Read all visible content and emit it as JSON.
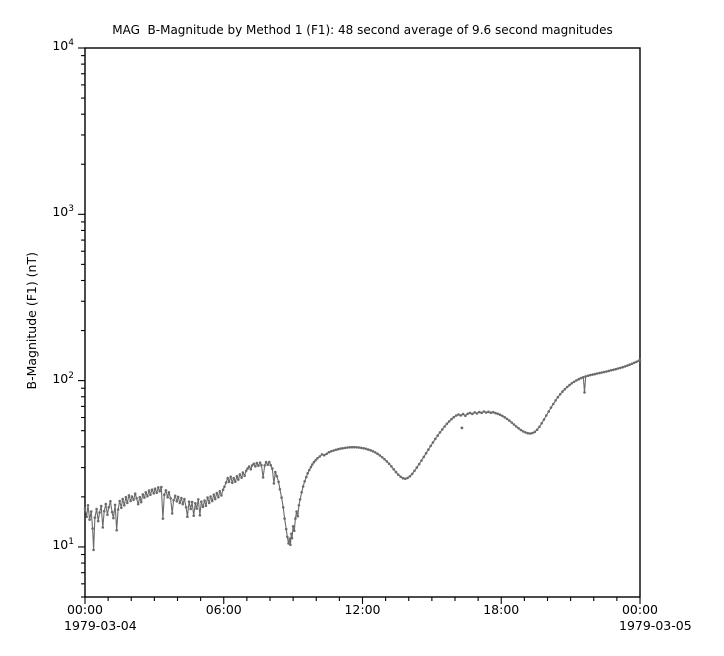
{
  "chart_data": {
    "type": "line",
    "title": "MAG  B-Magnitude by Method 1 (F1): 48 second average of 9.6 second magnitudes",
    "ylabel": "B-Magnitude (F1) (nT)",
    "line_color": "#6b6b6b",
    "marker": "dot",
    "grid": false,
    "legend": "none",
    "x_axis": {
      "unit": "time (hours of day)",
      "range_hours": [
        0,
        24
      ],
      "major_tick_every_hours": 6,
      "minor_tick_every_hours": 1,
      "ticks": [
        {
          "t": 0,
          "label": "00:00"
        },
        {
          "t": 6,
          "label": "06:00"
        },
        {
          "t": 12,
          "label": "12:00"
        },
        {
          "t": 18,
          "label": "18:00"
        },
        {
          "t": 24,
          "label": "00:00"
        }
      ],
      "date_labels": [
        {
          "t": 0,
          "label": "1979-03-04"
        },
        {
          "t": 24,
          "label": "1979-03-05"
        }
      ]
    },
    "y_axis": {
      "scale": "log",
      "range": [
        5,
        10000
      ],
      "mantissa": "10",
      "ticks": [
        {
          "value": 10,
          "exp": "1"
        },
        {
          "value": 100,
          "exp": "2"
        },
        {
          "value": 1000,
          "exp": "3"
        },
        {
          "value": 10000,
          "exp": "4"
        }
      ]
    },
    "series": [
      {
        "name": "B-Magnitude (F1) 48 s average",
        "points": [
          [
            0.0,
            17.0
          ],
          [
            0.07,
            15.2
          ],
          [
            0.13,
            17.8
          ],
          [
            0.2,
            14.6
          ],
          [
            0.27,
            16.3
          ],
          [
            0.33,
            12.9
          ],
          [
            0.37,
            9.6
          ],
          [
            0.43,
            15.0
          ],
          [
            0.5,
            16.9
          ],
          [
            0.57,
            14.3
          ],
          [
            0.63,
            16.1
          ],
          [
            0.7,
            17.6
          ],
          [
            0.77,
            13.1
          ],
          [
            0.83,
            16.4
          ],
          [
            0.9,
            18.1
          ],
          [
            0.97,
            15.6
          ],
          [
            1.03,
            17.3
          ],
          [
            1.1,
            18.8
          ],
          [
            1.17,
            16.2
          ],
          [
            1.23,
            14.9
          ],
          [
            1.3,
            17.9
          ],
          [
            1.37,
            12.6
          ],
          [
            1.43,
            16.8
          ],
          [
            1.5,
            18.9
          ],
          [
            1.57,
            17.2
          ],
          [
            1.63,
            19.4
          ],
          [
            1.7,
            17.8
          ],
          [
            1.77,
            19.9
          ],
          [
            1.83,
            18.4
          ],
          [
            1.9,
            20.4
          ],
          [
            1.97,
            18.9
          ],
          [
            2.03,
            20.1
          ],
          [
            2.1,
            19.2
          ],
          [
            2.17,
            20.9
          ],
          [
            2.23,
            19.6
          ],
          [
            2.3,
            18.1
          ],
          [
            2.37,
            19.9
          ],
          [
            2.43,
            18.6
          ],
          [
            2.5,
            20.7
          ],
          [
            2.57,
            19.8
          ],
          [
            2.63,
            21.3
          ],
          [
            2.7,
            20.2
          ],
          [
            2.77,
            21.8
          ],
          [
            2.83,
            20.6
          ],
          [
            2.9,
            22.1
          ],
          [
            2.97,
            21.0
          ],
          [
            3.03,
            22.4
          ],
          [
            3.1,
            21.2
          ],
          [
            3.17,
            22.8
          ],
          [
            3.23,
            21.6
          ],
          [
            3.3,
            22.9
          ],
          [
            3.37,
            14.8
          ],
          [
            3.43,
            20.6
          ],
          [
            3.5,
            21.9
          ],
          [
            3.57,
            19.9
          ],
          [
            3.63,
            21.3
          ],
          [
            3.7,
            19.6
          ],
          [
            3.77,
            15.9
          ],
          [
            3.83,
            19.1
          ],
          [
            3.9,
            20.3
          ],
          [
            3.97,
            18.8
          ],
          [
            4.03,
            20.0
          ],
          [
            4.1,
            18.4
          ],
          [
            4.17,
            19.7
          ],
          [
            4.23,
            18.1
          ],
          [
            4.3,
            19.4
          ],
          [
            4.37,
            17.3
          ],
          [
            4.43,
            15.2
          ],
          [
            4.5,
            18.7
          ],
          [
            4.57,
            16.9
          ],
          [
            4.63,
            18.6
          ],
          [
            4.7,
            15.4
          ],
          [
            4.77,
            18.3
          ],
          [
            4.83,
            17.0
          ],
          [
            4.9,
            19.3
          ],
          [
            4.97,
            15.5
          ],
          [
            5.03,
            18.7
          ],
          [
            5.1,
            17.4
          ],
          [
            5.17,
            19.0
          ],
          [
            5.23,
            17.7
          ],
          [
            5.3,
            19.8
          ],
          [
            5.37,
            18.4
          ],
          [
            5.43,
            20.1
          ],
          [
            5.5,
            18.9
          ],
          [
            5.57,
            20.6
          ],
          [
            5.63,
            19.4
          ],
          [
            5.7,
            21.1
          ],
          [
            5.77,
            19.9
          ],
          [
            5.83,
            21.6
          ],
          [
            5.9,
            20.4
          ],
          [
            5.97,
            22.1
          ],
          [
            6.03,
            23.0
          ],
          [
            6.1,
            24.4
          ],
          [
            6.17,
            25.9
          ],
          [
            6.23,
            24.6
          ],
          [
            6.3,
            26.4
          ],
          [
            6.37,
            24.3
          ],
          [
            6.43,
            25.9
          ],
          [
            6.5,
            24.7
          ],
          [
            6.57,
            26.6
          ],
          [
            6.63,
            25.4
          ],
          [
            6.7,
            27.3
          ],
          [
            6.77,
            26.1
          ],
          [
            6.83,
            28.0
          ],
          [
            6.9,
            26.8
          ],
          [
            6.97,
            28.7
          ],
          [
            7.03,
            29.6
          ],
          [
            7.1,
            30.4
          ],
          [
            7.17,
            29.3
          ],
          [
            7.23,
            30.9
          ],
          [
            7.3,
            31.6
          ],
          [
            7.37,
            30.5
          ],
          [
            7.43,
            31.9
          ],
          [
            7.5,
            30.8
          ],
          [
            7.57,
            32.1
          ],
          [
            7.63,
            31.0
          ],
          [
            7.7,
            26.2
          ],
          [
            7.77,
            30.9
          ],
          [
            7.83,
            32.3
          ],
          [
            7.9,
            31.2
          ],
          [
            7.97,
            32.4
          ],
          [
            8.03,
            31.0
          ],
          [
            8.1,
            29.6
          ],
          [
            8.17,
            24.1
          ],
          [
            8.23,
            28.2
          ],
          [
            8.3,
            26.6
          ],
          [
            8.37,
            24.6
          ],
          [
            8.43,
            22.2
          ],
          [
            8.5,
            19.8
          ],
          [
            8.57,
            17.3
          ],
          [
            8.63,
            14.8
          ],
          [
            8.7,
            12.8
          ],
          [
            8.75,
            11.5
          ],
          [
            8.8,
            10.5
          ],
          [
            8.85,
            11.2
          ],
          [
            8.88,
            10.3
          ],
          [
            8.92,
            12.0
          ],
          [
            8.95,
            11.3
          ],
          [
            9.0,
            13.3
          ],
          [
            9.05,
            12.5
          ],
          [
            9.1,
            14.8
          ],
          [
            9.15,
            16.3
          ],
          [
            9.2,
            15.3
          ],
          [
            9.25,
            17.8
          ],
          [
            9.3,
            19.3
          ],
          [
            9.37,
            21.3
          ],
          [
            9.43,
            23.1
          ],
          [
            9.5,
            24.8
          ],
          [
            9.57,
            26.3
          ],
          [
            9.63,
            27.7
          ],
          [
            9.7,
            29.0
          ],
          [
            9.77,
            30.2
          ],
          [
            9.83,
            31.3
          ],
          [
            9.9,
            32.3
          ],
          [
            9.97,
            33.2
          ],
          [
            10.05,
            34.1
          ],
          [
            10.15,
            35.0
          ],
          [
            10.25,
            36.0
          ],
          [
            10.35,
            35.6
          ],
          [
            10.45,
            36.3
          ],
          [
            10.55,
            37.1
          ],
          [
            10.65,
            37.6
          ],
          [
            10.75,
            38.0
          ],
          [
            10.85,
            38.4
          ],
          [
            10.95,
            38.7
          ],
          [
            11.05,
            39.0
          ],
          [
            11.15,
            39.2
          ],
          [
            11.25,
            39.4
          ],
          [
            11.35,
            39.6
          ],
          [
            11.45,
            39.7
          ],
          [
            11.55,
            39.8
          ],
          [
            11.65,
            39.8
          ],
          [
            11.75,
            39.7
          ],
          [
            11.85,
            39.6
          ],
          [
            11.95,
            39.4
          ],
          [
            12.05,
            39.2
          ],
          [
            12.15,
            38.9
          ],
          [
            12.25,
            38.5
          ],
          [
            12.35,
            38.1
          ],
          [
            12.45,
            37.6
          ],
          [
            12.55,
            37.0
          ],
          [
            12.65,
            36.3
          ],
          [
            12.75,
            35.5
          ],
          [
            12.85,
            34.6
          ],
          [
            12.95,
            33.7
          ],
          [
            13.05,
            32.7
          ],
          [
            13.15,
            31.6
          ],
          [
            13.25,
            30.5
          ],
          [
            13.35,
            29.3
          ],
          [
            13.45,
            28.2
          ],
          [
            13.55,
            27.2
          ],
          [
            13.65,
            26.4
          ],
          [
            13.75,
            25.9
          ],
          [
            13.85,
            25.7
          ],
          [
            13.95,
            26.0
          ],
          [
            14.05,
            26.6
          ],
          [
            14.15,
            27.5
          ],
          [
            14.25,
            28.7
          ],
          [
            14.35,
            30.0
          ],
          [
            14.45,
            31.5
          ],
          [
            14.55,
            33.1
          ],
          [
            14.65,
            34.8
          ],
          [
            14.75,
            36.6
          ],
          [
            14.85,
            38.5
          ],
          [
            14.95,
            40.5
          ],
          [
            15.05,
            42.5
          ],
          [
            15.15,
            44.6
          ],
          [
            15.25,
            46.7
          ],
          [
            15.35,
            48.8
          ],
          [
            15.45,
            50.9
          ],
          [
            15.55,
            53.0
          ],
          [
            15.65,
            55.0
          ],
          [
            15.75,
            56.9
          ],
          [
            15.85,
            58.7
          ],
          [
            15.95,
            60.3
          ],
          [
            16.05,
            61.7
          ],
          [
            16.15,
            62.6
          ],
          [
            16.25,
            61.8
          ],
          [
            16.35,
            62.9
          ],
          [
            16.45,
            61.5
          ],
          [
            16.55,
            63.2
          ],
          [
            16.65,
            64.0
          ],
          [
            16.75,
            63.1
          ],
          [
            16.85,
            64.4
          ],
          [
            16.95,
            63.5
          ],
          [
            17.05,
            64.8
          ],
          [
            17.15,
            64.0
          ],
          [
            17.25,
            65.2
          ],
          [
            17.35,
            64.3
          ],
          [
            17.45,
            64.9
          ],
          [
            17.55,
            64.1
          ],
          [
            17.65,
            64.6
          ],
          [
            17.75,
            63.8
          ],
          [
            17.85,
            63.2
          ],
          [
            17.95,
            62.4
          ],
          [
            18.05,
            61.4
          ],
          [
            18.15,
            60.2
          ],
          [
            18.25,
            58.9
          ],
          [
            18.35,
            57.5
          ],
          [
            18.45,
            56.0
          ],
          [
            18.55,
            54.5
          ],
          [
            18.65,
            53.0
          ],
          [
            18.75,
            51.7
          ],
          [
            18.85,
            50.5
          ],
          [
            18.95,
            49.5
          ],
          [
            19.05,
            48.8
          ],
          [
            19.15,
            48.3
          ],
          [
            19.25,
            48.1
          ],
          [
            19.35,
            48.4
          ],
          [
            19.45,
            49.2
          ],
          [
            19.55,
            50.7
          ],
          [
            19.65,
            52.8
          ],
          [
            19.75,
            55.4
          ],
          [
            19.85,
            58.4
          ],
          [
            19.95,
            61.7
          ],
          [
            20.05,
            65.2
          ],
          [
            20.15,
            68.8
          ],
          [
            20.25,
            72.4
          ],
          [
            20.35,
            76.0
          ],
          [
            20.45,
            79.5
          ],
          [
            20.55,
            82.8
          ],
          [
            20.65,
            85.9
          ],
          [
            20.75,
            88.8
          ],
          [
            20.85,
            91.5
          ],
          [
            20.95,
            94.0
          ],
          [
            21.05,
            96.3
          ],
          [
            21.15,
            98.4
          ],
          [
            21.25,
            100.3
          ],
          [
            21.35,
            102.0
          ],
          [
            21.45,
            103.5
          ],
          [
            21.55,
            104.8
          ],
          [
            21.6,
            85.0
          ],
          [
            21.65,
            106.0
          ],
          [
            21.75,
            107.0
          ],
          [
            21.85,
            107.9
          ],
          [
            21.95,
            108.7
          ],
          [
            22.05,
            109.5
          ],
          [
            22.15,
            110.3
          ],
          [
            22.25,
            111.1
          ],
          [
            22.35,
            111.9
          ],
          [
            22.45,
            112.7
          ],
          [
            22.55,
            113.5
          ],
          [
            22.65,
            114.4
          ],
          [
            22.75,
            115.3
          ],
          [
            22.85,
            116.2
          ],
          [
            22.95,
            117.2
          ],
          [
            23.05,
            118.2
          ],
          [
            23.15,
            119.3
          ],
          [
            23.25,
            120.5
          ],
          [
            23.35,
            121.8
          ],
          [
            23.45,
            123.2
          ],
          [
            23.55,
            124.7
          ],
          [
            23.65,
            126.3
          ],
          [
            23.75,
            128.0
          ],
          [
            23.85,
            129.8
          ],
          [
            23.95,
            131.7
          ],
          [
            24.0,
            132.7
          ]
        ]
      }
    ],
    "outlier_points": [
      [
        16.3,
        52.0
      ]
    ]
  }
}
